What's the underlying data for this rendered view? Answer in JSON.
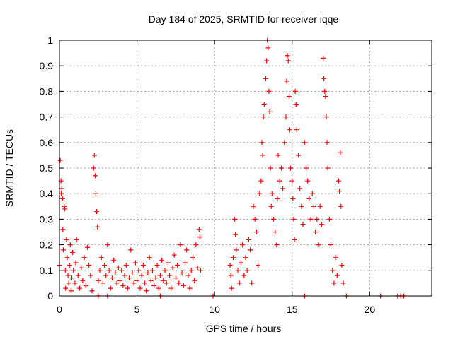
{
  "chart_data": {
    "type": "scatter",
    "title": "Day 184 of 2025, SRMTID for receiver iqqe",
    "xlabel": "GPS time / hours",
    "ylabel": "SRMTID / TECUs",
    "xlim": [
      0,
      24
    ],
    "ylim": [
      0,
      1
    ],
    "x_ticks": [
      0,
      5,
      10,
      15,
      20
    ],
    "y_ticks": [
      0,
      0.1,
      0.2,
      0.3,
      0.4,
      0.5,
      0.6,
      0.7,
      0.8,
      0.9,
      1
    ],
    "grid": true,
    "legend": "none",
    "marker": "+",
    "color": "#ff0000",
    "series": [
      {
        "points": [
          [
            0.0,
            0.12
          ],
          [
            0.05,
            0.53
          ],
          [
            0.1,
            0.45
          ],
          [
            0.12,
            0.4
          ],
          [
            0.15,
            0.42
          ],
          [
            0.2,
            0.38
          ],
          [
            0.22,
            0.26
          ],
          [
            0.25,
            0.18
          ],
          [
            0.3,
            0.35
          ],
          [
            0.35,
            0.34
          ],
          [
            0.38,
            0.1
          ],
          [
            0.4,
            0.03
          ],
          [
            0.45,
            0.22
          ],
          [
            0.5,
            0.15
          ],
          [
            0.55,
            0.08
          ],
          [
            0.6,
            0.05
          ],
          [
            0.65,
            0.12
          ],
          [
            0.7,
            0.2
          ],
          [
            0.75,
            0.02
          ],
          [
            0.8,
            0.07
          ],
          [
            0.85,
            0.17
          ],
          [
            0.9,
            0.1
          ],
          [
            1.0,
            0.05
          ],
          [
            1.05,
            0.13
          ],
          [
            1.1,
            0.22
          ],
          [
            1.2,
            0.08
          ],
          [
            1.3,
            0.03
          ],
          [
            1.4,
            0.11
          ],
          [
            1.5,
            0.06
          ],
          [
            1.6,
            0.15
          ],
          [
            1.7,
            0.04
          ],
          [
            1.8,
            0.19
          ],
          [
            1.9,
            0.12
          ],
          [
            2.0,
            0.08
          ],
          [
            2.1,
            0.02
          ],
          [
            2.2,
            0.5
          ],
          [
            2.25,
            0.55
          ],
          [
            2.3,
            0.47
          ],
          [
            2.35,
            0.4
          ],
          [
            2.4,
            0.33
          ],
          [
            2.45,
            0.27
          ],
          [
            2.5,
            0.06
          ],
          [
            2.6,
            0.1
          ],
          [
            2.7,
            0.15
          ],
          [
            2.8,
            0.05
          ],
          [
            2.9,
            0.12
          ],
          [
            3.0,
            0.08
          ],
          [
            3.1,
            0.2
          ],
          [
            3.2,
            0.1
          ],
          [
            3.3,
            0.03
          ],
          [
            3.4,
            0.07
          ],
          [
            3.5,
            0.14
          ],
          [
            3.6,
            0.09
          ],
          [
            3.7,
            0.05
          ],
          [
            3.8,
            0.11
          ],
          [
            3.9,
            0.06
          ],
          [
            4.0,
            0.1
          ],
          [
            4.1,
            0.04
          ],
          [
            4.2,
            0.08
          ],
          [
            4.3,
            0.12
          ],
          [
            4.4,
            0.03
          ],
          [
            4.5,
            0.07
          ],
          [
            4.6,
            0.18
          ],
          [
            4.7,
            0.09
          ],
          [
            4.8,
            0.05
          ],
          [
            4.9,
            0.13
          ],
          [
            5.0,
            0.06
          ],
          [
            5.1,
            0.1
          ],
          [
            5.2,
            0.03
          ],
          [
            5.3,
            0.08
          ],
          [
            5.4,
            0.12
          ],
          [
            5.5,
            0.05
          ],
          [
            5.6,
            0.02
          ],
          [
            5.7,
            0.09
          ],
          [
            5.8,
            0.15
          ],
          [
            5.9,
            0.06
          ],
          [
            6.0,
            0.1
          ],
          [
            6.1,
            0.04
          ],
          [
            6.2,
            0.07
          ],
          [
            6.3,
            0.12
          ],
          [
            6.4,
            0.03
          ],
          [
            6.5,
            0.08
          ],
          [
            6.6,
            0.14
          ],
          [
            6.7,
            0.06
          ],
          [
            6.8,
            0.1
          ],
          [
            6.9,
            0.05
          ],
          [
            7.0,
            0.13
          ],
          [
            7.1,
            0.08
          ],
          [
            7.2,
            0.03
          ],
          [
            7.3,
            0.11
          ],
          [
            7.4,
            0.16
          ],
          [
            7.5,
            0.07
          ],
          [
            7.6,
            0.12
          ],
          [
            7.7,
            0.05
          ],
          [
            7.8,
            0.2
          ],
          [
            7.9,
            0.09
          ],
          [
            8.0,
            0.04
          ],
          [
            8.1,
            0.13
          ],
          [
            8.2,
            0.18
          ],
          [
            8.3,
            0.08
          ],
          [
            8.4,
            0.03
          ],
          [
            8.5,
            0.1
          ],
          [
            8.6,
            0.15
          ],
          [
            8.7,
            0.06
          ],
          [
            8.8,
            0.2
          ],
          [
            8.9,
            0.11
          ],
          [
            9.0,
            0.26
          ],
          [
            9.05,
            0.23
          ],
          [
            9.1,
            0.1
          ],
          [
            11.0,
            0.12
          ],
          [
            11.05,
            0.08
          ],
          [
            11.1,
            0.03
          ],
          [
            11.2,
            0.15
          ],
          [
            11.3,
            0.3
          ],
          [
            11.35,
            0.24
          ],
          [
            11.4,
            0.18
          ],
          [
            11.5,
            0.1
          ],
          [
            11.6,
            0.05
          ],
          [
            11.7,
            0.13
          ],
          [
            11.8,
            0.2
          ],
          [
            11.9,
            0.08
          ],
          [
            12.0,
            0.15
          ],
          [
            12.1,
            0.1
          ],
          [
            12.2,
            0.22
          ],
          [
            12.3,
            0.18
          ],
          [
            12.4,
            0.05
          ],
          [
            12.5,
            0.35
          ],
          [
            12.6,
            0.3
          ],
          [
            12.7,
            0.25
          ],
          [
            12.8,
            0.12
          ],
          [
            12.9,
            0.4
          ],
          [
            13.0,
            0.45
          ],
          [
            13.05,
            0.6
          ],
          [
            13.1,
            0.55
          ],
          [
            13.15,
            0.7
          ],
          [
            13.2,
            0.75
          ],
          [
            13.3,
            0.85
          ],
          [
            13.35,
            0.92
          ],
          [
            13.4,
            1.0
          ],
          [
            13.45,
            0.97
          ],
          [
            13.5,
            0.8
          ],
          [
            13.55,
            0.72
          ],
          [
            13.6,
            0.5
          ],
          [
            13.65,
            0.35
          ],
          [
            13.7,
            0.4
          ],
          [
            13.8,
            0.3
          ],
          [
            13.9,
            0.25
          ],
          [
            14.0,
            0.2
          ],
          [
            14.05,
            0.38
          ],
          [
            14.1,
            0.55
          ],
          [
            14.2,
            0.45
          ],
          [
            14.3,
            0.5
          ],
          [
            14.4,
            0.42
          ],
          [
            14.5,
            0.6
          ],
          [
            14.6,
            0.7
          ],
          [
            14.65,
            0.84
          ],
          [
            14.7,
            0.94
          ],
          [
            14.75,
            0.92
          ],
          [
            14.8,
            0.78
          ],
          [
            14.85,
            0.65
          ],
          [
            14.9,
            0.5
          ],
          [
            15.0,
            0.45
          ],
          [
            15.05,
            0.38
          ],
          [
            15.1,
            0.3
          ],
          [
            15.15,
            0.22
          ],
          [
            15.2,
            0.8
          ],
          [
            15.25,
            0.75
          ],
          [
            15.3,
            0.65
          ],
          [
            15.4,
            0.55
          ],
          [
            15.5,
            0.42
          ],
          [
            15.6,
            0.35
          ],
          [
            15.7,
            0.28
          ],
          [
            15.8,
            0.6
          ],
          [
            15.9,
            0.5
          ],
          [
            16.0,
            0.45
          ],
          [
            16.1,
            0.38
          ],
          [
            16.2,
            0.3
          ],
          [
            16.3,
            0.4
          ],
          [
            16.4,
            0.35
          ],
          [
            16.5,
            0.25
          ],
          [
            16.6,
            0.3
          ],
          [
            16.7,
            0.2
          ],
          [
            16.8,
            0.35
          ],
          [
            16.9,
            0.28
          ],
          [
            17.0,
            0.93
          ],
          [
            17.05,
            0.85
          ],
          [
            17.1,
            0.8
          ],
          [
            17.15,
            0.78
          ],
          [
            17.2,
            0.7
          ],
          [
            17.25,
            0.6
          ],
          [
            17.3,
            0.5
          ],
          [
            17.4,
            0.3
          ],
          [
            17.5,
            0.2
          ],
          [
            17.6,
            0.1
          ],
          [
            17.7,
            0.05
          ],
          [
            17.8,
            0.15
          ],
          [
            17.9,
            0.08
          ],
          [
            18.0,
            0.45
          ],
          [
            18.05,
            0.41
          ],
          [
            18.1,
            0.56
          ],
          [
            18.15,
            0.35
          ],
          [
            18.2,
            0.12
          ],
          [
            18.3,
            0.05
          ],
          [
            18.5,
            0.0
          ],
          [
            20.7,
            0.0
          ],
          [
            21.8,
            0.0
          ],
          [
            22.0,
            0.0
          ],
          [
            22.2,
            0.0
          ],
          [
            15.8,
            0.0
          ],
          [
            2.5,
            0.0
          ],
          [
            3.1,
            0.0
          ],
          [
            6.5,
            0.0
          ],
          [
            9.9,
            0.0
          ]
        ]
      }
    ]
  }
}
